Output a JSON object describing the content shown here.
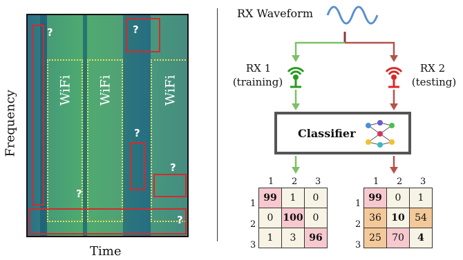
{
  "spectrogram": {
    "wifi_label": "WiFi",
    "unknown_marker": "?",
    "x_axis_label": "Time",
    "y_axis_label": "Frequency"
  },
  "diagram": {
    "waveform_label": "RX Waveform",
    "rx1": {
      "title": "RX 1",
      "subtitle": "(training)",
      "color": "#2a9a1f"
    },
    "rx2": {
      "title": "RX 2",
      "subtitle": "(testing)",
      "color": "#d62a2a"
    },
    "classifier_label": "Classifier",
    "waveform_color": "#5b8fd1"
  },
  "confusion_matrices": {
    "col_indices": [
      "1",
      "2",
      "3"
    ],
    "row_indices": [
      "1",
      "2",
      "3"
    ],
    "training": {
      "cells": [
        [
          "99",
          "1",
          "0"
        ],
        [
          "0",
          "100",
          "0"
        ],
        [
          "1",
          "3",
          "96"
        ]
      ],
      "colors": [
        [
          "#f7c9cf",
          "#f7f4e6",
          "#f7f4e6"
        ],
        [
          "#f7f4e6",
          "#f7c9cf",
          "#f7f4e6"
        ],
        [
          "#f7f4e6",
          "#f7f4e6",
          "#f7c9cf"
        ]
      ]
    },
    "testing": {
      "cells": [
        [
          "99",
          "0",
          "1"
        ],
        [
          "36",
          "10",
          "54"
        ],
        [
          "25",
          "70",
          "4"
        ]
      ],
      "colors": [
        [
          "#f7c9cf",
          "#f7f4e6",
          "#f7f4e6"
        ],
        [
          "#f4c99a",
          "#f7f4e6",
          "#f4c99a"
        ],
        [
          "#f4c99a",
          "#f7c9cf",
          "#f7f4e6"
        ]
      ]
    }
  }
}
